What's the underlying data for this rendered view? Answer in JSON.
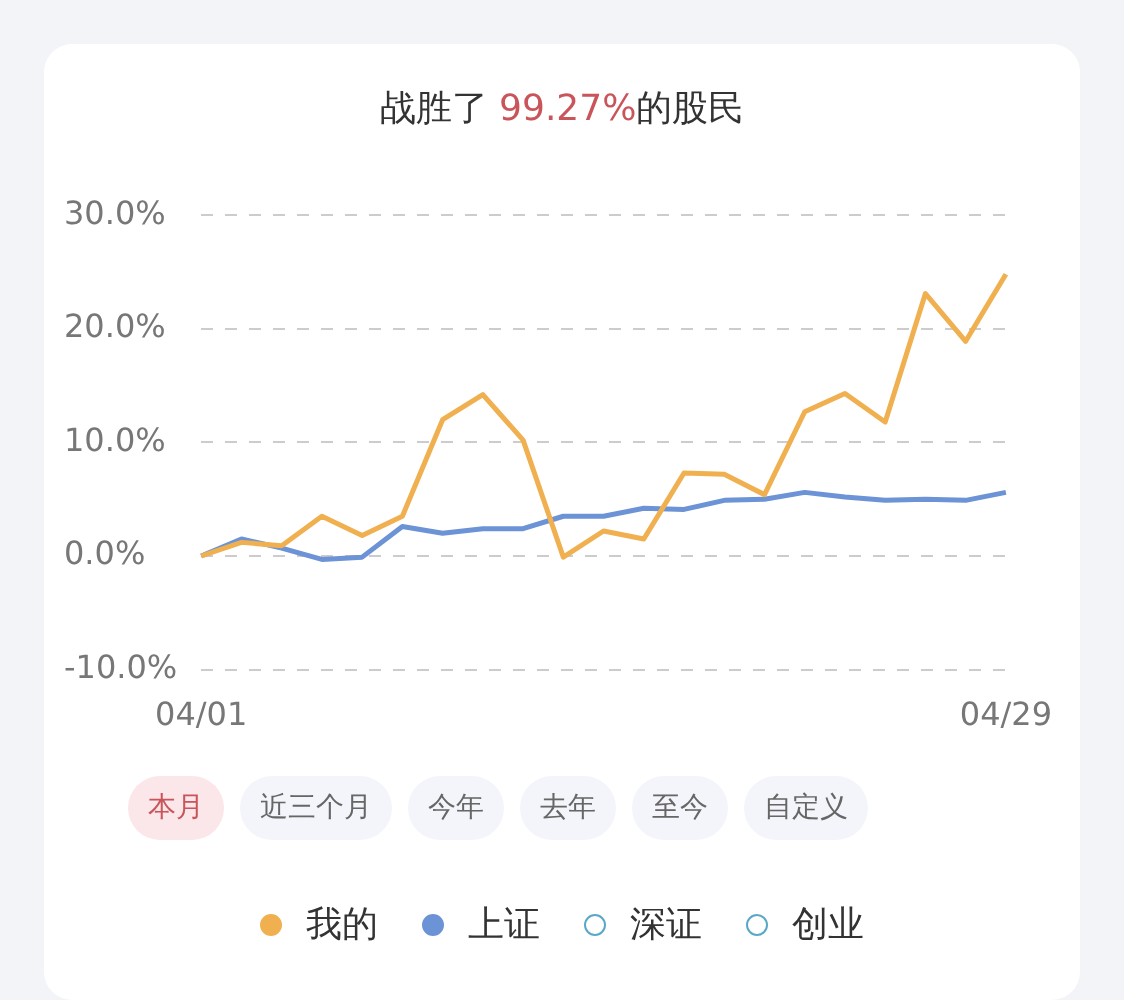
{
  "chart_data": {
    "type": "line",
    "title": "战胜了 99.27%的股民",
    "categories": [
      "04/01",
      null,
      null,
      null,
      null,
      null,
      null,
      null,
      null,
      null,
      null,
      null,
      null,
      null,
      null,
      null,
      null,
      null,
      null,
      null,
      "04/29"
    ],
    "series": [
      {
        "name": "我的",
        "color": "#f0b050",
        "values": [
          0,
          1.2,
          0.9,
          3.5,
          1.8,
          3.5,
          12.0,
          14.2,
          10.2,
          -0.1,
          2.2,
          1.5,
          7.3,
          7.2,
          5.4,
          12.7,
          14.3,
          11.8,
          23.1,
          18.9,
          24.8
        ]
      },
      {
        "name": "上证",
        "color": "#6b93d6",
        "values": [
          0,
          1.5,
          0.7,
          -0.3,
          -0.1,
          2.6,
          2.0,
          2.4,
          2.4,
          3.5,
          3.5,
          4.2,
          4.1,
          4.9,
          5.0,
          5.6,
          5.2,
          4.9,
          5.0,
          4.9,
          5.6
        ]
      },
      {
        "name": "深证",
        "color": "#5aa8c8",
        "values": [
          null,
          null,
          null,
          null,
          null,
          null,
          null,
          null,
          null,
          null,
          null,
          null,
          null,
          null,
          null,
          null,
          null,
          null,
          null,
          null,
          null
        ]
      },
      {
        "name": "创业",
        "color": "#5aa8c8",
        "values": [
          null,
          null,
          null,
          null,
          null,
          null,
          null,
          null,
          null,
          null,
          null,
          null,
          null,
          null,
          null,
          null,
          null,
          null,
          null,
          null,
          null
        ]
      }
    ],
    "ylim": [
      -10,
      30
    ],
    "yticks": [
      {
        "value": -10,
        "label": "-10.0%"
      },
      {
        "value": 0,
        "label": "0.0%"
      },
      {
        "value": 10,
        "label": "10.0%"
      },
      {
        "value": 20,
        "label": "20.0%"
      },
      {
        "value": 30,
        "label": "30.0%"
      }
    ],
    "grid": "y",
    "legend": "bottom",
    "marker": "none",
    "line_style": "solid",
    "annotations": [
      "本月",
      "近三个月",
      "今年",
      "去年",
      "至今",
      "自定义"
    ]
  }
}
